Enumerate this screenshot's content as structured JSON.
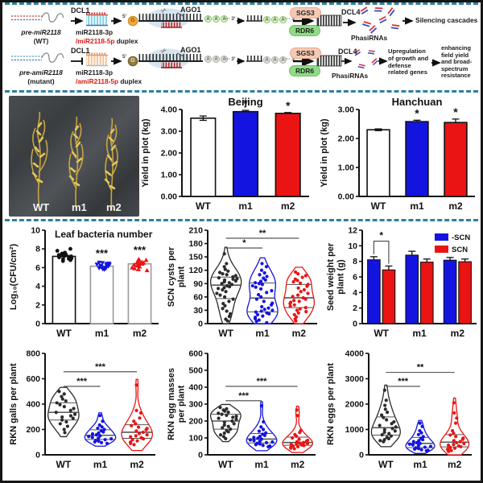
{
  "diagram": {
    "wt": {
      "precursor": "pre-miR2118",
      "precursor_sub": "(WT)",
      "dcl1": "DCL1",
      "duplex_line1": "miR2118-3p",
      "duplex_line2_red": "/miR2118-5p",
      "duplex_line2_black": " duplex",
      "five_prime": "5'",
      "cap": "G",
      "ago1": "AGO1",
      "aaa": "A",
      "three_prime": "··· 3'",
      "three_prime2": "··· 3",
      "sgs3": "SGS3",
      "rdr6": "RDR6",
      "dcl4": "DCL4",
      "phasirnas": "PhasiRNAs",
      "outcome": "Silencing cascades"
    },
    "mut": {
      "precursor": "pre-amiR2118",
      "precursor_sub": "(mutant)",
      "dcl1": "DCL1",
      "duplex_line1": "miR2118-3p",
      "duplex_line2_red": "/amiR2118-5p",
      "duplex_line2_black": " duplex",
      "five_prime": "5'",
      "cap": "G",
      "ago1": "AGO1",
      "aaa": "A",
      "three_prime": "··· 3'",
      "three_prime2": "··· 3",
      "sgs3": "SGS3",
      "rdr6": "RDR6",
      "dcl4": "DCL4",
      "phasirnas": "PhasiRNAs",
      "outcome1": "Upregulation of growth and defense related genes",
      "outcome2": "enhancing field yield and broad-spectrum resistance"
    },
    "icons": {
      "scissors": "✂"
    }
  },
  "photo": {
    "labels": [
      "WT",
      "m1",
      "m2"
    ]
  },
  "colors": {
    "blue": "#1414E0",
    "red": "#EA1414",
    "dash": "#2E7F9F"
  },
  "chart_data": [
    {
      "id": "beijing",
      "type": "bar",
      "title": "Beijing",
      "ylabel": [
        "Yield in plot (kg)"
      ],
      "ylim": [
        0,
        4
      ],
      "ytick_step": 1,
      "ytick_decimals": 2,
      "categories": [
        "WT",
        "m1",
        "m2"
      ],
      "values": [
        3.6,
        3.9,
        3.82
      ],
      "errors": [
        0.1,
        0.06,
        0.04
      ],
      "bar_colors": [
        "#ffffff",
        "#1414E0",
        "#EA1414"
      ],
      "sig_above": [
        "",
        "*",
        "*"
      ],
      "margins": {
        "l": 52,
        "r": 10,
        "t": 18,
        "b": 26
      }
    },
    {
      "id": "hanchuan",
      "type": "bar",
      "title": "Hanchuan",
      "ylabel": [
        "Yield in plot (kg)"
      ],
      "ylim": [
        0,
        3
      ],
      "ytick_step": 1,
      "ytick_decimals": 2,
      "categories": [
        "WT",
        "m1",
        "m2"
      ],
      "values": [
        2.3,
        2.58,
        2.55
      ],
      "errors": [
        0.03,
        0.05,
        0.12
      ],
      "bar_colors": [
        "#ffffff",
        "#1414E0",
        "#EA1414"
      ],
      "sig_above": [
        "",
        "*",
        "*"
      ],
      "margins": {
        "l": 50,
        "r": 8,
        "t": 18,
        "b": 26
      }
    },
    {
      "id": "leaf",
      "type": "bar_scatter",
      "title": "Leaf bacteria number",
      "title_inside": true,
      "ylabel": [
        "Log₁₀(CFU/cm²)"
      ],
      "ylim": [
        0,
        10
      ],
      "ytick_step": 2,
      "ytick_decimals": 0,
      "categories": [
        "WT",
        "m1",
        "m2"
      ],
      "values": [
        7.2,
        6.15,
        6.4
      ],
      "outline": [
        "#111111",
        "#9a9a9a",
        "#9a9a9a"
      ],
      "point_colors": [
        "#111111",
        "#1414E0",
        "#EA1414"
      ],
      "markers": [
        "circle",
        "tri_down",
        "tri_up"
      ],
      "points": [
        [
          8.0,
          7.8,
          7.6,
          7.5,
          7.45,
          7.4,
          7.35,
          7.3,
          7.25,
          7.2,
          7.15,
          7.1,
          7.0,
          6.95,
          6.9,
          6.8,
          6.7
        ],
        [
          6.55,
          6.5,
          6.45,
          6.4,
          6.35,
          6.3,
          6.25,
          6.2,
          6.15,
          6.1,
          6.0,
          5.95,
          5.9,
          5.85,
          5.8
        ],
        [
          6.9,
          6.8,
          6.7,
          6.6,
          6.55,
          6.5,
          6.45,
          6.4,
          6.35,
          6.3,
          6.2,
          6.1,
          6.0,
          5.9,
          5.8,
          5.7
        ]
      ],
      "sig_above": [
        "",
        "***",
        "***"
      ],
      "margins": {
        "l": 46,
        "r": 8,
        "t": 8,
        "b": 26
      }
    },
    {
      "id": "scn",
      "type": "violin",
      "ylabel": [
        "SCN cysts  per",
        "plant"
      ],
      "ylim": [
        0,
        210
      ],
      "ytick_step": 30,
      "ytick_decimals": 0,
      "categories": [
        "WT",
        "m1",
        "m2"
      ],
      "colors": [
        "#2b2b2b",
        "#1414E0",
        "#EA1414"
      ],
      "values": [
        [
          157,
          135,
          128,
          122,
          118,
          115,
          112,
          110,
          108,
          105,
          103,
          101,
          100,
          98,
          96,
          94,
          92,
          90,
          88,
          85,
          83,
          81,
          79,
          76,
          72,
          68,
          64,
          60,
          55,
          50,
          45,
          40,
          34,
          28,
          22,
          16,
          10,
          6
        ],
        [
          135,
          128,
          120,
          114,
          110,
          106,
          102,
          98,
          95,
          92,
          90,
          88,
          85,
          82,
          78,
          74,
          70,
          65,
          60,
          55,
          50,
          46,
          42,
          38,
          35,
          32,
          30,
          28,
          26,
          24,
          22,
          20,
          17,
          14,
          11,
          8,
          5,
          2
        ],
        [
          116,
          112,
          108,
          104,
          100,
          97,
          94,
          91,
          88,
          84,
          80,
          76,
          72,
          68,
          64,
          61,
          58,
          55,
          52,
          50,
          48,
          45,
          42,
          39,
          36,
          33,
          30,
          27,
          24,
          20,
          15,
          10,
          6
        ]
      ],
      "sig_pairs": [
        [
          0,
          1,
          "*",
          170
        ],
        [
          0,
          2,
          "**",
          192
        ]
      ],
      "margins": {
        "l": 52,
        "r": 8,
        "t": 8,
        "b": 26
      }
    },
    {
      "id": "seed",
      "type": "grouped_bar",
      "ylabel": [
        "Seed weight  per",
        "plant (g)"
      ],
      "ylim": [
        0,
        12
      ],
      "ytick_step": 2,
      "ytick_decimals": 0,
      "categories": [
        "WT",
        "m1",
        "m2"
      ],
      "series": [
        {
          "name": "-SCN",
          "color": "#1414E0",
          "values": [
            8.2,
            8.8,
            8.15
          ],
          "errors": [
            0.4,
            0.5,
            0.35
          ]
        },
        {
          "name": "SCN",
          "color": "#EA1414",
          "values": [
            6.9,
            7.9,
            7.95
          ],
          "errors": [
            0.5,
            0.4,
            0.35
          ]
        }
      ],
      "bracket": {
        "group": 0,
        "label": "*",
        "y": 10.6
      },
      "margins": {
        "l": 46,
        "r": 6,
        "t": 8,
        "b": 26
      }
    },
    {
      "id": "galls",
      "type": "violin",
      "ylabel": [
        "RKN galls per plant"
      ],
      "ylim": [
        0,
        800
      ],
      "ytick_step": 200,
      "ytick_decimals": 0,
      "categories": [
        "WT",
        "m1",
        "m2"
      ],
      "colors": [
        "#2b2b2b",
        "#1414E0",
        "#EA1414"
      ],
      "values": [
        [
          500,
          480,
          460,
          440,
          425,
          410,
          395,
          380,
          365,
          350,
          335,
          320,
          308,
          298,
          288,
          275,
          260,
          245,
          225,
          200,
          175
        ],
        [
          310,
          265,
          235,
          220,
          210,
          200,
          190,
          180,
          172,
          165,
          158,
          150,
          144,
          138,
          132,
          126,
          120,
          114,
          108,
          102,
          96,
          90
        ],
        [
          550,
          350,
          330,
          290,
          265,
          245,
          230,
          218,
          208,
          198,
          188,
          178,
          168,
          158,
          150,
          142,
          134,
          126,
          118,
          110,
          100,
          90,
          80
        ]
      ],
      "sig_pairs": [
        [
          0,
          1,
          "***",
          540
        ],
        [
          0,
          2,
          "***",
          655
        ]
      ],
      "margins": {
        "l": 46,
        "r": 12,
        "t": 8,
        "b": 26
      }
    },
    {
      "id": "masses",
      "type": "violin",
      "ylabel": [
        "RKN egg masses",
        "per plant"
      ],
      "ylim": [
        0,
        600
      ],
      "ytick_step": 100,
      "ytick_decimals": 0,
      "categories": [
        "WT",
        "m1",
        "m2"
      ],
      "colors": [
        "#2b2b2b",
        "#1414E0",
        "#EA1414"
      ],
      "values": [
        [
          280,
          272,
          265,
          258,
          252,
          246,
          240,
          234,
          228,
          222,
          216,
          210,
          200,
          192,
          184,
          176,
          168,
          160,
          152,
          144,
          136,
          128,
          118,
          108,
          96
        ],
        [
          290,
          195,
          165,
          150,
          140,
          130,
          122,
          115,
          109,
          103,
          98,
          93,
          88,
          84,
          80,
          76,
          72,
          68,
          64,
          60,
          56,
          52,
          48
        ],
        [
          265,
          232,
          145,
          132,
          120,
          110,
          100,
          92,
          86,
          81,
          77,
          73,
          70,
          67,
          64,
          61,
          58,
          55,
          52,
          48,
          44,
          40,
          36
        ]
      ],
      "sig_pairs": [
        [
          0,
          1,
          "***",
          320
        ],
        [
          0,
          2,
          "***",
          405
        ]
      ],
      "margins": {
        "l": 52,
        "r": 10,
        "t": 8,
        "b": 26
      }
    },
    {
      "id": "eggs",
      "type": "violin",
      "ylabel": [
        "RKN eggs  per plant"
      ],
      "ylim": [
        0,
        4000
      ],
      "ytick_step": 1000,
      "ytick_decimals": 0,
      "categories": [
        "WT",
        "m1",
        "m2"
      ],
      "colors": [
        "#2b2b2b",
        "#1414E0",
        "#EA1414"
      ],
      "values": [
        [
          2550,
          2150,
          1950,
          1800,
          1680,
          1570,
          1470,
          1380,
          1300,
          1230,
          1160,
          1100,
          1040,
          990,
          940,
          890,
          840,
          790,
          740,
          690,
          640,
          600,
          560,
          520
        ],
        [
          1250,
          1120,
          950,
          870,
          800,
          720,
          650,
          600,
          560,
          520,
          480,
          450,
          420,
          390,
          360,
          330,
          300,
          275,
          250,
          225,
          200,
          180,
          160
        ],
        [
          2050,
          1650,
          1450,
          1250,
          950,
          850,
          780,
          720,
          660,
          610,
          560,
          520,
          480,
          445,
          410,
          380,
          350,
          320,
          290,
          260,
          230,
          200,
          170,
          140
        ]
      ],
      "sig_pairs": [
        [
          0,
          1,
          "***",
          2700
        ],
        [
          0,
          2,
          "**",
          3250
        ]
      ],
      "margins": {
        "l": 54,
        "r": 12,
        "t": 8,
        "b": 26
      }
    }
  ]
}
